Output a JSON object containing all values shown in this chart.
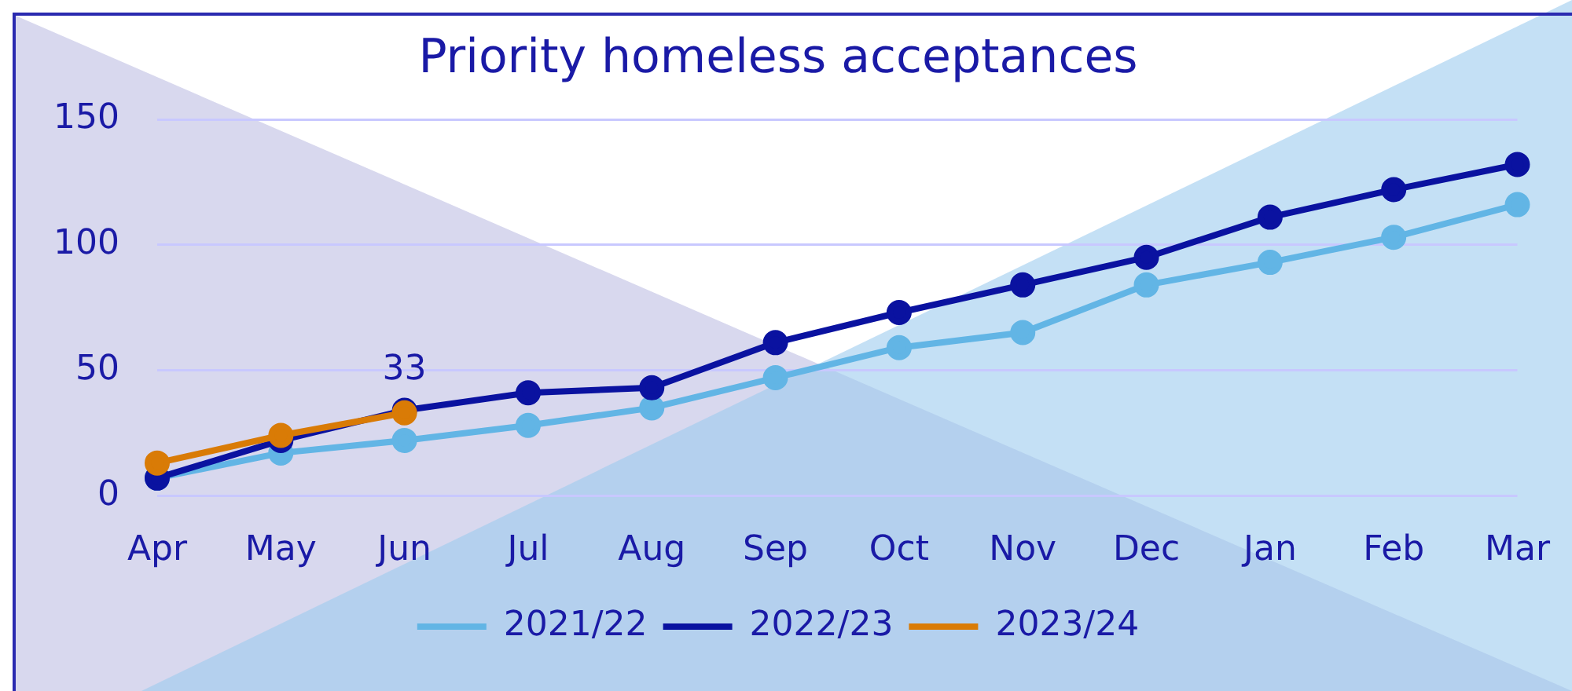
{
  "chart_data": {
    "type": "line",
    "title": "Priority homeless acceptances",
    "categories": [
      "Apr",
      "May",
      "Jun",
      "Jul",
      "Aug",
      "Sep",
      "Oct",
      "Nov",
      "Dec",
      "Jan",
      "Feb",
      "Mar"
    ],
    "series": [
      {
        "name": "2021/22",
        "color": "#62b5e5",
        "values": [
          7,
          17,
          22,
          28,
          35,
          47,
          59,
          65,
          84,
          93,
          103,
          116
        ]
      },
      {
        "name": "2022/23",
        "color": "#0a12a0",
        "values": [
          7,
          22,
          34,
          41,
          43,
          61,
          73,
          84,
          95,
          111,
          122,
          132
        ]
      },
      {
        "name": "2023/24",
        "color": "#d97b06",
        "values": [
          13,
          24,
          33,
          null,
          null,
          null,
          null,
          null,
          null,
          null,
          null,
          null
        ],
        "value_labels": [
          null,
          null,
          "33",
          null,
          null,
          null,
          null,
          null,
          null,
          null,
          null,
          null
        ]
      }
    ],
    "ylim": [
      0,
      150
    ],
    "yticks": [
      0,
      50,
      100,
      150
    ],
    "grid": "y",
    "legend": "bottom",
    "marker": "circle",
    "line_style": "solid"
  }
}
